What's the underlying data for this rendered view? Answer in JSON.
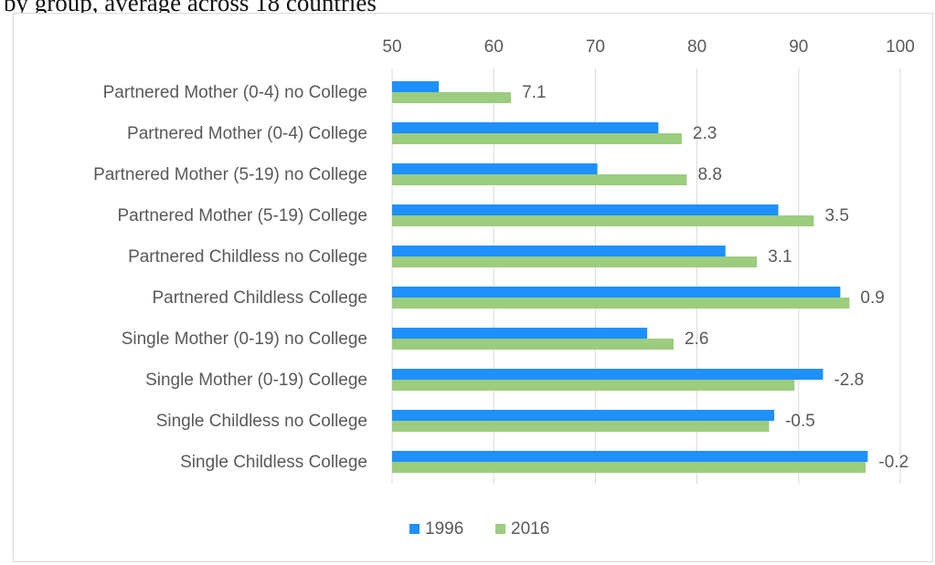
{
  "caption": "by group, average across 18 countries",
  "chart_data": {
    "type": "bar",
    "orientation": "horizontal",
    "title": "",
    "xlabel": "",
    "ylabel": "",
    "xlim": [
      50,
      100
    ],
    "x_ticks": [
      "50",
      "60",
      "70",
      "80",
      "90",
      "100"
    ],
    "grid": true,
    "legend_position": "bottom",
    "categories": [
      "Partnered Mother (0-4) no College",
      "Partnered Mother (0-4) College",
      "Partnered Mother (5-19) no College",
      "Partnered Mother (5-19) College",
      "Partnered Childless no College",
      "Partnered Childless College",
      "Single Mother (0-19) no College",
      "Single Mother (0-19) College",
      "Single Childless no College",
      "Single Childless College"
    ],
    "series": [
      {
        "name": "1996",
        "color": "#1e90ff",
        "values": [
          54.6,
          76.2,
          70.2,
          88.0,
          82.8,
          94.1,
          75.1,
          92.4,
          87.6,
          96.8
        ]
      },
      {
        "name": "2016",
        "color": "#9ccc7e",
        "values": [
          61.7,
          78.5,
          79.0,
          91.5,
          85.9,
          95.0,
          77.7,
          89.6,
          87.1,
          96.6
        ]
      }
    ],
    "data_labels": [
      "7.1",
      "2.3",
      "8.8",
      "3.5",
      "3.1",
      "0.9",
      "2.6",
      "-2.8",
      "-0.5",
      "-0.2"
    ]
  }
}
